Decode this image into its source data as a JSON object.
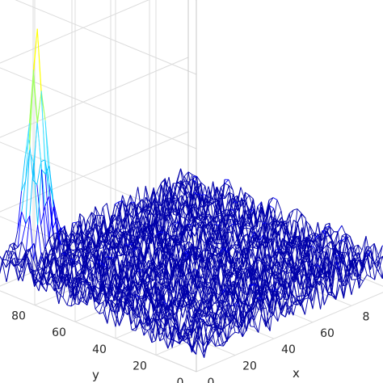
{
  "chart_data": {
    "type": "mesh3d",
    "xlabel": "x",
    "ylabel": "y",
    "grid": true,
    "x_ticks": [
      "0",
      "20",
      "40",
      "60",
      "8"
    ],
    "y_ticks": [
      "0",
      "20",
      "40",
      "60",
      "80"
    ],
    "xlim": [
      0,
      100
    ],
    "ylim": [
      0,
      100
    ],
    "zlim": [
      0,
      1
    ],
    "surface": {
      "description_values": {
        "background_noise_mean": 0.07,
        "background_noise_amplitude": 0.05,
        "peak_x": 18,
        "peak_y": 96,
        "peak_height": 0.55
      }
    },
    "colormap": [
      "#0000aa",
      "#0000ff",
      "#00bfff",
      "#40e0ff",
      "#a0ff60",
      "#ffff00"
    ]
  }
}
